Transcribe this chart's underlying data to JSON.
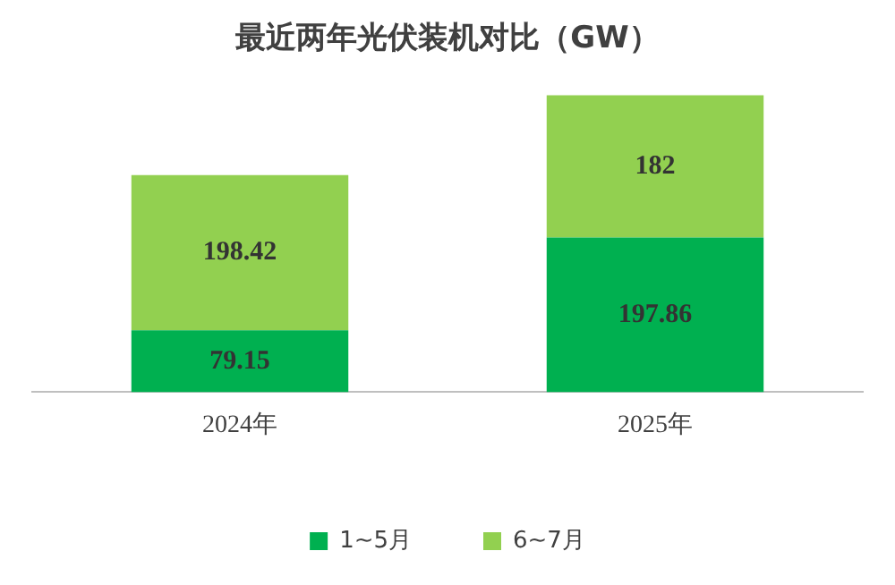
{
  "chart_data": {
    "type": "bar",
    "title": "最近两年光伏装机对比（GW）",
    "categories": [
      "2024年",
      "2025年"
    ],
    "stacked": true,
    "data_labels": true,
    "legend": "bottom",
    "grid": false,
    "series": [
      {
        "name": "1~5月",
        "color": "#00b050",
        "values": [
          79.15,
          197.86
        ]
      },
      {
        "name": "6~7月",
        "color": "#92d050",
        "values": [
          198.42,
          182
        ]
      }
    ]
  }
}
